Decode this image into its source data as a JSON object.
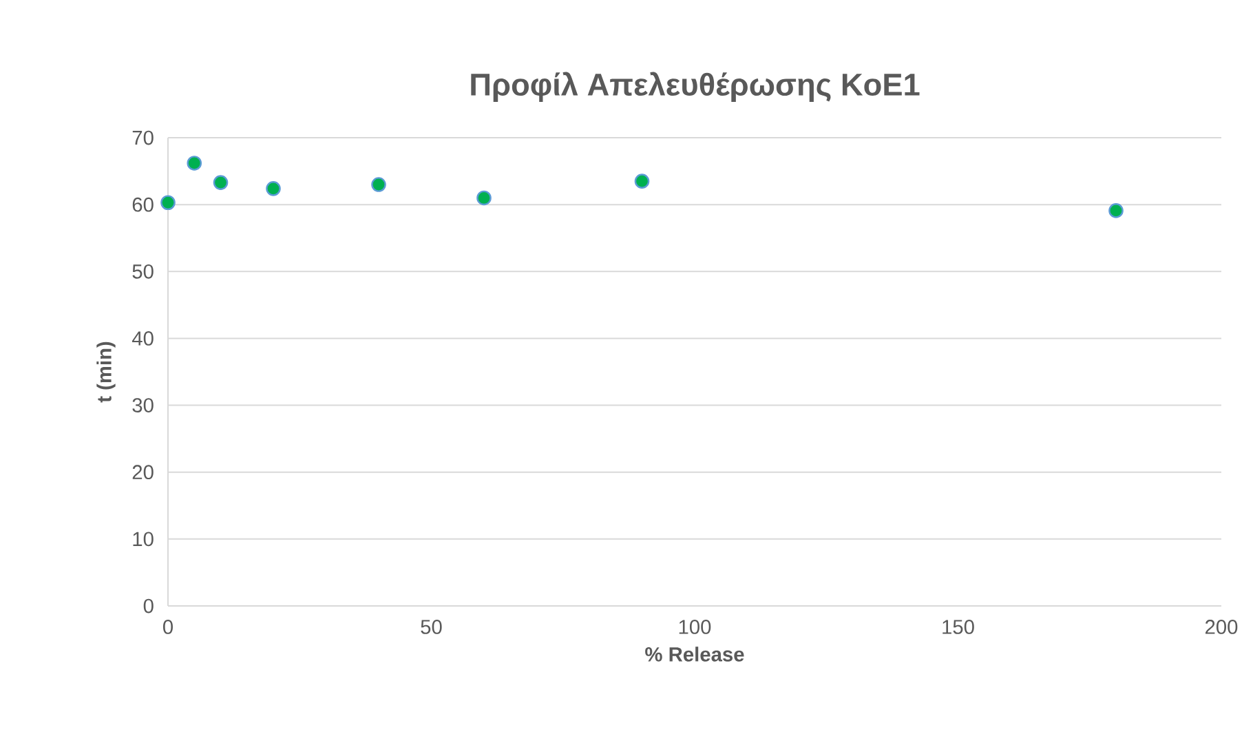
{
  "chart_data": {
    "type": "scatter",
    "title": "Προφίλ Απελευθέρωσης KoE1",
    "xlabel": "% Release",
    "ylabel": "t (min)",
    "x": [
      0,
      5,
      10,
      20,
      40,
      60,
      90,
      180
    ],
    "values": [
      60.3,
      66.2,
      63.3,
      62.4,
      63,
      61,
      63.5,
      59.1
    ],
    "color": "#00b050",
    "marker": "circle",
    "xlim": [
      0,
      200
    ],
    "xticks": [
      0,
      50,
      100,
      150,
      200
    ],
    "ylim": [
      0,
      70
    ],
    "yticks": [
      0,
      10,
      20,
      30,
      40,
      50,
      60,
      70
    ],
    "grid": "y"
  }
}
